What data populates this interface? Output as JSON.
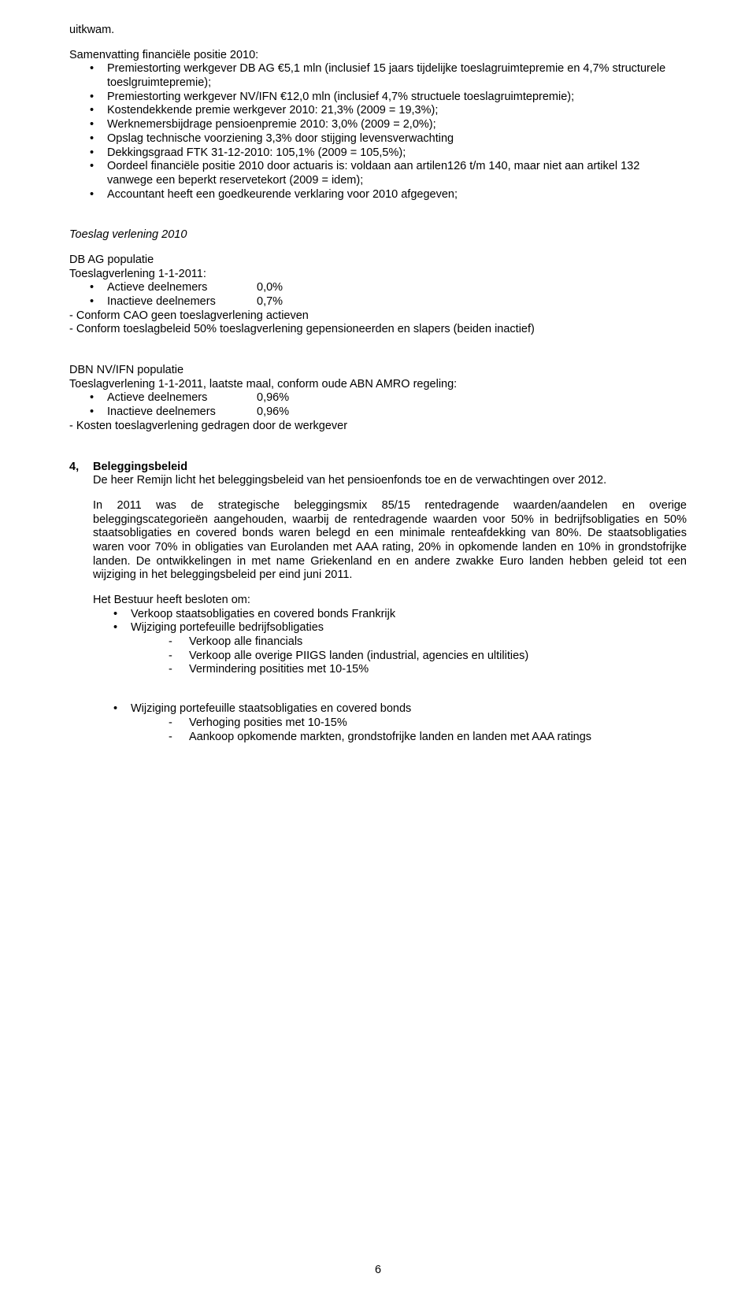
{
  "meta": {
    "page_number": "6",
    "text_color": "#000000",
    "background_color": "#ffffff",
    "font_family": "Arial",
    "base_fontsize_pt": 11
  },
  "top_word": "uitkwam.",
  "samenvatting": {
    "heading": "Samenvatting financiële positie 2010:",
    "items": [
      "Premiestorting werkgever DB AG €5,1 mln (inclusief 15 jaars tijdelijke toeslagruimtepremie en 4,7% structurele toeslgruimtepremie);",
      "Premiestorting werkgever NV/IFN €12,0 mln (inclusief 4,7% structuele toeslagruimtepremie);",
      "Kostendekkende premie werkgever 2010: 21,3% (2009 = 19,3%);",
      "Werknemersbijdrage pensioenpremie 2010: 3,0% (2009 = 2,0%);",
      "Opslag technische voorziening 3,3% door stijging levensverwachting",
      "Dekkingsgraad FTK 31-12-2010: 105,1% (2009 = 105,5%);",
      "Oordeel financiële positie 2010 door actuaris is: voldaan aan artilen126 t/m 140, maar niet aan artikel 132 vanwege een beperkt reservetekort (2009 = idem);",
      "Accountant heeft een goedkeurende verklaring voor 2010 afgegeven;"
    ]
  },
  "toeslag_heading": "Toeslag verlening 2010",
  "dbag": {
    "title": "DB AG populatie",
    "line": "Toeslagverlening 1-1-2011:",
    "rows": [
      {
        "label": "Actieve deelnemers",
        "value": "0,0%"
      },
      {
        "label": "Inactieve deelnemers",
        "value": "0,7%"
      }
    ],
    "notes": [
      "- Conform CAO geen toeslagverlening actieven",
      "- Conform toeslagbeleid 50% toeslagverlening gepensioneerden en slapers (beiden inactief)"
    ]
  },
  "dbn": {
    "title": "DBN NV/IFN populatie",
    "line": "Toeslagverlening 1-1-2011, laatste maal, conform oude ABN AMRO regeling:",
    "rows": [
      {
        "label": "Actieve deelnemers",
        "value": "0,96%"
      },
      {
        "label": "Inactieve deelnemers",
        "value": "0,96%"
      }
    ],
    "note": "- Kosten toeslagverlening gedragen door de werkgever"
  },
  "sec4": {
    "number": "4,",
    "title": "Beleggingsbeleid",
    "p1": "De heer Remijn licht het beleggingsbeleid van het pensioenfonds toe en de verwachtingen over 2012.",
    "p2": "In 2011 was de strategische beleggingsmix 85/15 rentedragende waarden/aandelen en overige beleggingscategorieën aangehouden, waarbij de rentedragende waarden voor 50% in bedrijfsobligaties en 50% staatsobligaties en covered bonds waren belegd en een minimale renteafdekking van 80%. De staatsobligaties waren voor 70% in obligaties van Eurolanden met AAA rating, 20% in opkomende landen en 10% in grondstofrijke landen. De ontwikkelingen in met name Griekenland en en andere zwakke Euro landen hebben geleid tot een wijziging in het beleggingsbeleid per eind juni 2011.",
    "besluit_heading": "Het Bestuur heeft besloten om:",
    "besluit_items": [
      {
        "text": "Verkoop staatsobligaties en covered bonds Frankrijk"
      },
      {
        "text": "Wijziging portefeuille bedrijfsobligaties",
        "sub": [
          "Verkoop alle financials",
          "Verkoop alle overige PIIGS landen (industrial, agencies en ultilities)",
          "Vermindering positities met 10-15%"
        ]
      }
    ],
    "wijziging_items": [
      {
        "text": "Wijziging portefeuille staatsobligaties en covered bonds",
        "sub": [
          "Verhoging posities met 10-15%",
          "Aankoop opkomende markten, grondstofrijke landen en landen met AAA ratings"
        ]
      }
    ]
  }
}
